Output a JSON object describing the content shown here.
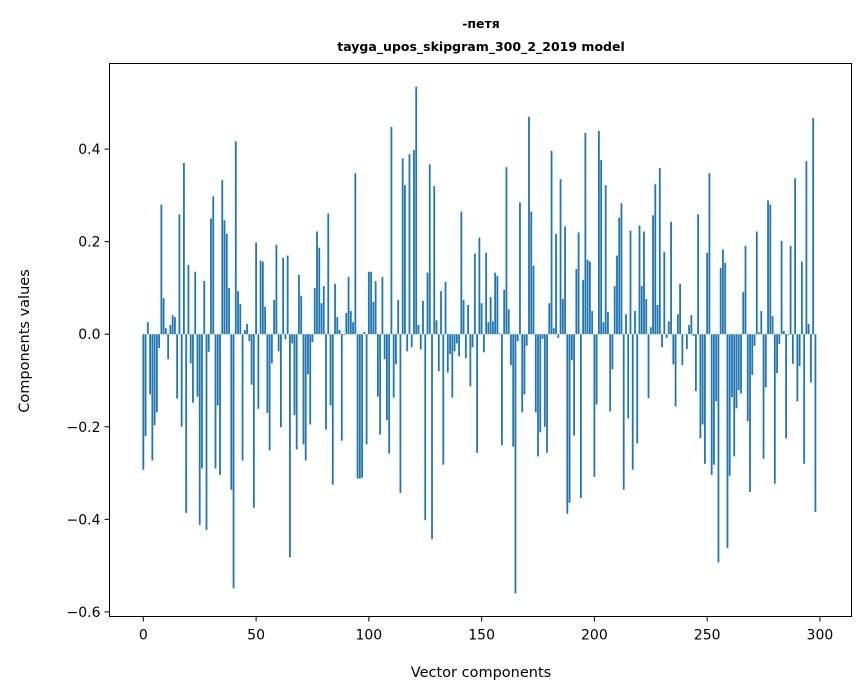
{
  "chart_data": {
    "type": "bar",
    "title": [
      "-петя",
      "tayga_upos_skipgram_300_2_2019 model"
    ],
    "xlabel": "Vector components",
    "ylabel": "Components values",
    "xlim": [
      -15,
      314
    ],
    "ylim": [
      -0.61,
      0.585
    ],
    "xticks": [
      0,
      50,
      100,
      150,
      200,
      250,
      300
    ],
    "xtick_labels": [
      "0",
      "50",
      "100",
      "150",
      "200",
      "250",
      "300"
    ],
    "yticks": [
      -0.6,
      -0.4,
      -0.2,
      0.0,
      0.2,
      0.4
    ],
    "ytick_labels": [
      "−0.6",
      "−0.4",
      "−0.2",
      "0.0",
      "0.2",
      "0.4"
    ],
    "grid": false,
    "color": "#1f77b4",
    "values": [
      -0.293,
      -0.22,
      0.026,
      -0.13,
      -0.273,
      -0.197,
      -0.169,
      -0.03,
      0.28,
      0.078,
      0.013,
      -0.054,
      0.02,
      0.041,
      0.037,
      -0.139,
      0.259,
      -0.2,
      0.37,
      -0.386,
      0.15,
      -0.063,
      -0.148,
      0.135,
      -0.135,
      -0.412,
      -0.29,
      0.115,
      -0.423,
      -0.038,
      0.25,
      0.298,
      -0.29,
      -0.154,
      -0.304,
      0.333,
      0.246,
      0.217,
      0.1,
      -0.336,
      -0.549,
      0.417,
      0.093,
      0.065,
      -0.273,
      0.009,
      0.022,
      -0.015,
      -0.109,
      -0.375,
      0.198,
      -0.161,
      0.159,
      0.157,
      0.059,
      -0.17,
      -0.251,
      -0.063,
      0.074,
      0.193,
      -0.037,
      -0.201,
      0.165,
      -0.011,
      0.17,
      -0.482,
      -0.02,
      -0.175,
      -0.249,
      0.128,
      0.083,
      -0.238,
      -0.273,
      -0.087,
      -0.195,
      -0.017,
      0.1,
      0.222,
      0.187,
      0.067,
      0.104,
      -0.206,
      0.261,
      -0.154,
      -0.325,
      0.109,
      0.037,
      0.009,
      -0.23,
      -0.002,
      0.046,
      0.124,
      0.05,
      0.026,
      0.348,
      -0.312,
      -0.312,
      -0.31,
      0.005,
      -0.238,
      0.135,
      0.135,
      0.07,
      0.115,
      -0.135,
      -0.217,
      0.124,
      -0.054,
      -0.186,
      -0.258,
      0.448,
      -0.137,
      -0.065,
      0.074,
      -0.343,
      0.38,
      0.322,
      -0.037,
      0.389,
      -0.028,
      0.398,
      0.535,
      0.02,
      -0.033,
      0.072,
      -0.402,
      0.133,
      0.367,
      -0.443,
      0.32,
      0.03,
      -0.08,
      0.093,
      -0.282,
      0.113,
      -0.083,
      -0.043,
      -0.137,
      -0.037,
      -0.02,
      -0.048,
      0.265,
      0.074,
      -0.052,
      0.063,
      -0.113,
      -0.028,
      0.174,
      -0.256,
      0.209,
      0.067,
      -0.039,
      0.176,
      0.026,
      0.08,
      0.028,
      0.133,
      0.126,
      0.002,
      -0.24,
      0.096,
      0.361,
      0.054,
      -0.067,
      -0.243,
      -0.56,
      -0.015,
      0.285,
      -0.169,
      -0.13,
      -0.025,
      0.47,
      0.265,
      0.148,
      -0.169,
      -0.264,
      -0.212,
      -0.01,
      -0.2,
      -0.256,
      0.067,
      0.396,
      0.013,
      0.217,
      -0.008,
      0.335,
      0.076,
      0.233,
      -0.388,
      -0.364,
      -0.056,
      -0.219,
      0.141,
      0.22,
      -0.354,
      0.117,
      0.435,
      0.161,
      0.157,
      0.05,
      -0.308,
      -0.152,
      0.439,
      0.376,
      0.026,
      0.322,
      0.048,
      -0.167,
      -0.076,
      0.104,
      0.17,
      0.252,
      0.283,
      -0.336,
      0.043,
      -0.182,
      0.224,
      -0.293,
      0.05,
      -0.236,
      0.235,
      0.104,
      0.222,
      0.076,
      -0.138,
      0.015,
      0.257,
      0.324,
      0.063,
      0.359,
      -0.028,
      0.178,
      -0.008,
      0.028,
      0.243,
      -0.065,
      -0.156,
      0.043,
      0.109,
      -0.067,
      -0.001,
      -0.032,
      0.02,
      0.041,
      -0.004,
      -0.123,
      0.259,
      -0.225,
      -0.195,
      -0.28,
      0.176,
      0.348,
      -0.304,
      -0.282,
      -0.145,
      -0.493,
      0.143,
      0.183,
      0.154,
      -0.462,
      -0.306,
      -0.136,
      -0.264,
      -0.16,
      -0.121,
      -0.128,
      0.091,
      0.191,
      -0.188,
      -0.341,
      -0.088,
      -0.025,
      0.222,
      0.004,
      0.05,
      -0.269,
      -0.115,
      0.289,
      0.28,
      0.039,
      -0.323,
      -0.084,
      -0.021,
      0.202,
      0.007,
      -0.225,
      -0.002,
      0.191,
      -0.064,
      0.337,
      -0.145,
      -0.069,
      0.157,
      -0.28,
      0.374,
      0.022,
      -0.104,
      0.467,
      -0.384
    ]
  }
}
